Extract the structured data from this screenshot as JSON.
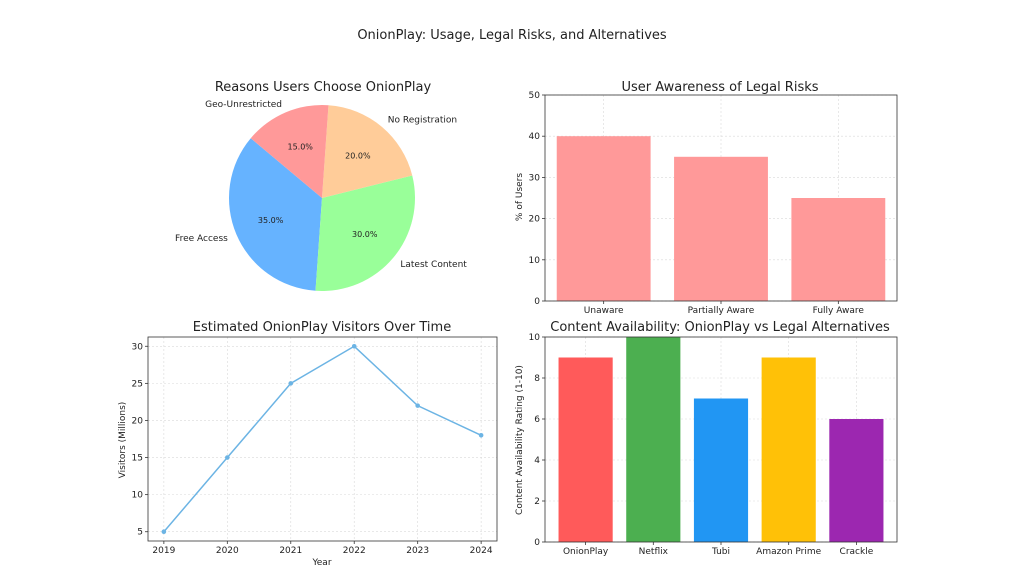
{
  "figure": {
    "title": "OnionPlay: Usage, Legal Risks, and Alternatives"
  },
  "chart_data": [
    {
      "type": "pie",
      "title": "Reasons Users Choose OnionPlay",
      "labels": [
        "Free Access",
        "Latest Content",
        "No Registration",
        "Geo-Unrestricted"
      ],
      "values": [
        35.0,
        30.0,
        20.0,
        15.0
      ],
      "value_labels": [
        "35.0%",
        "30.0%",
        "20.0%",
        "15.0%"
      ],
      "colors": [
        "#66b3ff",
        "#99ff99",
        "#ffcc99",
        "#ff9999"
      ]
    },
    {
      "type": "bar",
      "title": "User Awareness of Legal Risks",
      "categories": [
        "Unaware",
        "Partially Aware",
        "Fully Aware"
      ],
      "values": [
        40,
        35,
        25
      ],
      "xlabel": "",
      "ylabel": "% of Users",
      "ylim": [
        0,
        50
      ],
      "yticks": [
        0,
        10,
        20,
        30,
        40,
        50
      ],
      "color": "#ff9999",
      "grid": true
    },
    {
      "type": "line",
      "title": "Estimated OnionPlay Visitors Over Time",
      "x": [
        2019,
        2020,
        2021,
        2022,
        2023,
        2024
      ],
      "y": [
        5,
        15,
        25,
        30,
        22,
        18
      ],
      "xlabel": "Year",
      "ylabel": "Visitors (Millions)",
      "xlim": [
        2018.75,
        2024.25
      ],
      "ylim": [
        3.75,
        31.25
      ],
      "yticks": [
        5,
        10,
        15,
        20,
        25,
        30
      ],
      "color": "#6cb4e4",
      "grid": true
    },
    {
      "type": "bar",
      "title": "Content Availability: OnionPlay vs Legal Alternatives",
      "categories": [
        "OnionPlay",
        "Netflix",
        "Tubi",
        "Amazon Prime",
        "Crackle"
      ],
      "values": [
        9,
        10,
        7,
        9,
        6
      ],
      "xlabel": "",
      "ylabel": "Content Availability Rating (1-10)",
      "ylim": [
        0,
        10
      ],
      "yticks": [
        0,
        2,
        4,
        6,
        8,
        10
      ],
      "colors": [
        "#ff5a5a",
        "#4caf50",
        "#2196f3",
        "#ffc107",
        "#9c27b0"
      ],
      "grid": true
    }
  ]
}
